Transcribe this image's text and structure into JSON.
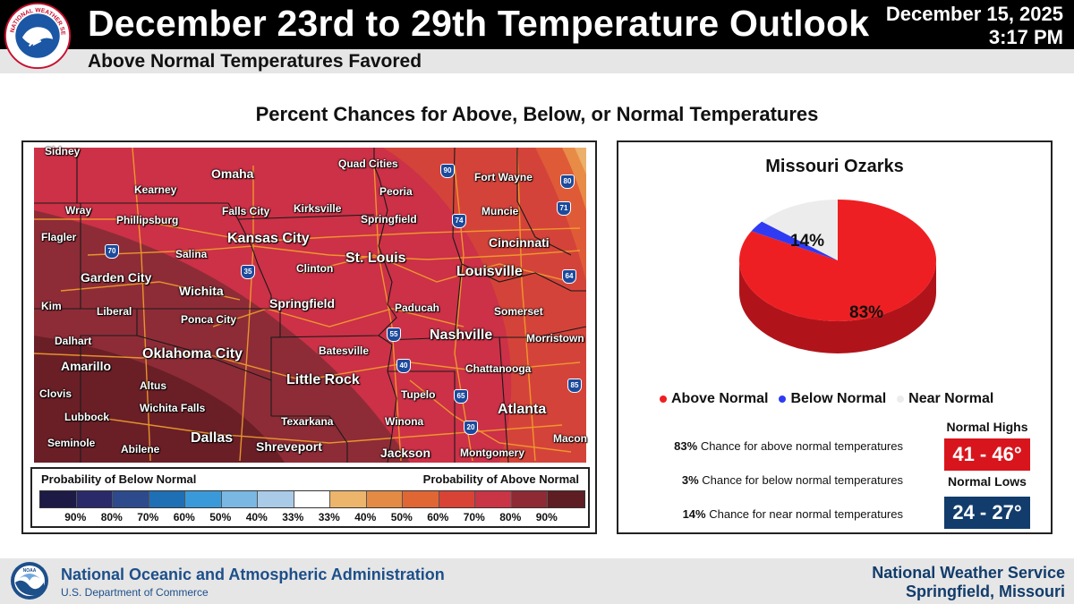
{
  "header": {
    "title": "December 23rd to 29th Temperature Outlook",
    "subtitle": "Above Normal Temperatures Favored",
    "date": "December 15, 2025",
    "time": "3:17 PM",
    "logo_text": "NATIONAL WEATHER SERVICE"
  },
  "section_title": "Percent Chances for Above, Below, or Normal Temperatures",
  "map": {
    "cities": [
      {
        "name": "Sidney",
        "size": "s"
      },
      {
        "name": "Kearney",
        "size": "s"
      },
      {
        "name": "Omaha",
        "size": "m"
      },
      {
        "name": "Quad Cities",
        "size": "s"
      },
      {
        "name": "Fort Wayne",
        "size": "s"
      },
      {
        "name": "Wray",
        "size": "s"
      },
      {
        "name": "Phillipsburg",
        "size": "s"
      },
      {
        "name": "Falls City",
        "size": "s"
      },
      {
        "name": "Kirksville",
        "size": "s"
      },
      {
        "name": "Peoria",
        "size": "s"
      },
      {
        "name": "Springfield",
        "size": "s"
      },
      {
        "name": "Muncie",
        "size": "s"
      },
      {
        "name": "Flagler",
        "size": "s"
      },
      {
        "name": "Kansas City",
        "size": "l"
      },
      {
        "name": "Cincinnati",
        "size": "m"
      },
      {
        "name": "Salina",
        "size": "s"
      },
      {
        "name": "St. Louis",
        "size": "l"
      },
      {
        "name": "Garden City",
        "size": "m"
      },
      {
        "name": "Clinton",
        "size": "s"
      },
      {
        "name": "Louisville",
        "size": "l"
      },
      {
        "name": "Wichita",
        "size": "m"
      },
      {
        "name": "Kim",
        "size": "s"
      },
      {
        "name": "Liberal",
        "size": "s"
      },
      {
        "name": "Springfield",
        "size": "m"
      },
      {
        "name": "Ponca City",
        "size": "s"
      },
      {
        "name": "Paducah",
        "size": "s"
      },
      {
        "name": "Somerset",
        "size": "s"
      },
      {
        "name": "Dalhart",
        "size": "s"
      },
      {
        "name": "Nashville",
        "size": "l"
      },
      {
        "name": "Morristown",
        "size": "s"
      },
      {
        "name": "Batesville",
        "size": "s"
      },
      {
        "name": "Oklahoma City",
        "size": "l"
      },
      {
        "name": "Amarillo",
        "size": "m"
      },
      {
        "name": "Chattanooga",
        "size": "s"
      },
      {
        "name": "Altus",
        "size": "s"
      },
      {
        "name": "Little Rock",
        "size": "l"
      },
      {
        "name": "Clovis",
        "size": "s"
      },
      {
        "name": "Tupelo",
        "size": "s"
      },
      {
        "name": "Wichita Falls",
        "size": "s"
      },
      {
        "name": "Atlanta",
        "size": "l"
      },
      {
        "name": "Lubbock",
        "size": "s"
      },
      {
        "name": "Texarkana",
        "size": "s"
      },
      {
        "name": "Winona",
        "size": "s"
      },
      {
        "name": "Seminole",
        "size": "s"
      },
      {
        "name": "Abilene",
        "size": "s"
      },
      {
        "name": "Dallas",
        "size": "l"
      },
      {
        "name": "Shreveport",
        "size": "m"
      },
      {
        "name": "Macon",
        "size": "s"
      },
      {
        "name": "Jackson",
        "size": "m"
      },
      {
        "name": "Montgomery",
        "size": "s"
      }
    ],
    "interstates": [
      "90",
      "80",
      "71",
      "74",
      "70",
      "35",
      "64",
      "55",
      "40",
      "65",
      "85",
      "20"
    ],
    "legend": {
      "below_label": "Probability of Below Normal",
      "above_label": "Probability of Above Normal",
      "colors": [
        "#1e1a46",
        "#2a2a6b",
        "#2d4a8c",
        "#1f6fb5",
        "#3a9ad9",
        "#7ab7e3",
        "#a9cbe8",
        "#ffffff",
        "#ecb56b",
        "#e38b44",
        "#e06634",
        "#d84336",
        "#c93545",
        "#8e2a34",
        "#5e1d22"
      ],
      "ticks": [
        "90%",
        "80%",
        "70%",
        "60%",
        "50%",
        "40%",
        "33%",
        "33%",
        "40%",
        "50%",
        "60%",
        "70%",
        "80%",
        "90%"
      ]
    }
  },
  "ozarks": {
    "title": "Missouri Ozarks",
    "chart_data": {
      "type": "pie",
      "categories": [
        "Above Normal",
        "Below Normal",
        "Near Normal"
      ],
      "values": [
        83,
        3,
        14
      ],
      "colors": [
        "#ee1f23",
        "#2f3bf2",
        "#ececec"
      ],
      "slice_labels": [
        "83%",
        "",
        "14%"
      ]
    },
    "legend": [
      "Above Normal",
      "Below Normal",
      "Near Normal"
    ],
    "stats": [
      {
        "pct": "83%",
        "text": "Chance for above normal temperatures"
      },
      {
        "pct": "3%",
        "text": "Chance for below normal temperatures"
      },
      {
        "pct": "14%",
        "text": "Chance for near normal temperatures"
      }
    ],
    "normal_highs_label": "Normal Highs",
    "normal_highs": "41 - 46°",
    "normal_lows_label": "Normal Lows",
    "normal_lows": "24 - 27°"
  },
  "footer": {
    "org": "National Oceanic and Atmospheric Administration",
    "dept": "U.S. Department of Commerce",
    "office_line1": "National Weather Service",
    "office_line2": "Springfield, Missouri",
    "noaa_text": "NOAA"
  }
}
